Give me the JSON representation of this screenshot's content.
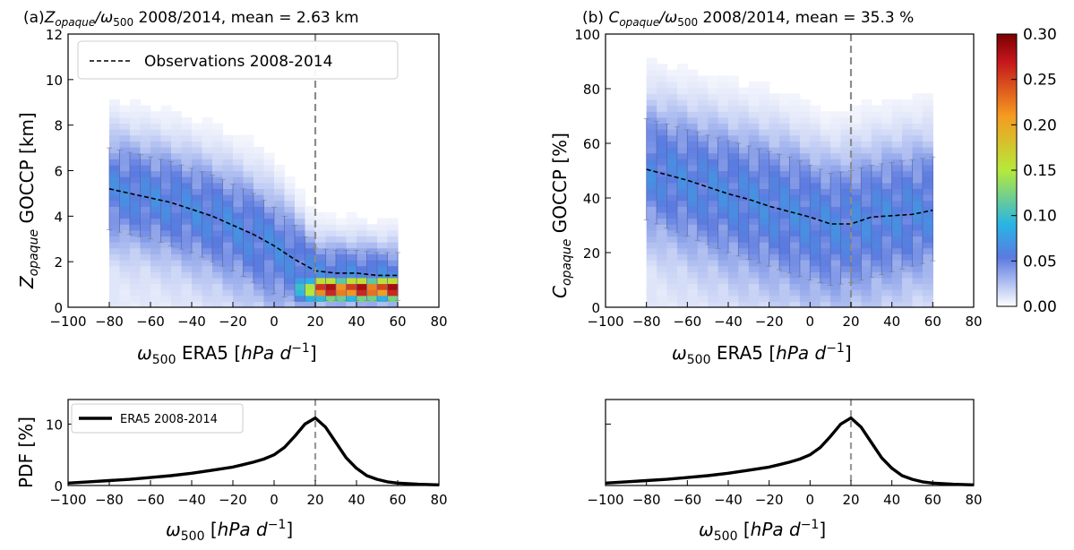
{
  "colorbar": {
    "ticks": [
      "0.30",
      "0.25",
      "0.20",
      "0.15",
      "0.10",
      "0.05",
      "0.00"
    ],
    "stops": [
      "#ffffff",
      "#5b7ae0",
      "#28b4e6",
      "#b6e93a",
      "#f59a20",
      "#c4161c",
      "#7a0000"
    ]
  },
  "chart_data": [
    {
      "panel": "a",
      "type": "heatmap",
      "title": {
        "prefix": "(a)",
        "var": "Z",
        "var_sub": "opaque",
        "sep": "/ω",
        "sep_sub": "500",
        "suffix": " 2008/2014, mean = 2.63 km"
      },
      "xlabel": {
        "main": "ω",
        "sub": "500",
        "rest": " ERA5 [",
        "italic": "hPa d",
        "sup": "−1",
        "close": "]"
      },
      "ylabel": {
        "var": "Z",
        "sub": "opaque",
        "rest": " GOCCP [km]"
      },
      "xlim": [
        -100,
        80
      ],
      "ylim": [
        0,
        12
      ],
      "xticks": [
        "−100",
        "−80",
        "−60",
        "−40",
        "−20",
        "0",
        "20",
        "40",
        "60",
        "80"
      ],
      "yticks": [
        "0",
        "2",
        "4",
        "6",
        "8",
        "10",
        "12"
      ],
      "legend": {
        "label": "Observations 2008-2014",
        "placement": "top-left"
      },
      "vline_x": 20,
      "x": [
        -80,
        -70,
        -60,
        -50,
        -40,
        -30,
        -20,
        -10,
        0,
        10,
        20,
        30,
        40,
        50,
        60
      ],
      "mean": [
        5.2,
        5.0,
        4.8,
        4.6,
        4.3,
        4.0,
        3.6,
        3.2,
        2.7,
        2.1,
        1.6,
        1.5,
        1.5,
        1.4,
        1.4
      ],
      "p_low": [
        3.4,
        3.2,
        3.0,
        2.7,
        2.4,
        2.0,
        1.6,
        1.1,
        0.6,
        0.3,
        0.3,
        0.3,
        0.3,
        0.3,
        0.3
      ],
      "p_high": [
        7.0,
        6.8,
        6.6,
        6.4,
        6.1,
        5.8,
        5.4,
        5.0,
        4.4,
        3.6,
        2.6,
        2.5,
        2.5,
        2.4,
        2.4
      ]
    },
    {
      "panel": "b",
      "type": "heatmap",
      "title": {
        "prefix": "(b) ",
        "var": "C",
        "var_sub": "opaque",
        "sep": "/ω",
        "sep_sub": "500",
        "suffix": " 2008/2014, mean = 35.3 %"
      },
      "xlabel": {
        "main": "ω",
        "sub": "500",
        "rest": " ERA5 [",
        "italic": "hPa d",
        "sup": "−1",
        "close": "]"
      },
      "ylabel": {
        "var": "C",
        "sub": "opaque",
        "rest": " GOCCP [%]"
      },
      "xlim": [
        -100,
        80
      ],
      "ylim": [
        0,
        100
      ],
      "xticks": [
        "−100",
        "−80",
        "−60",
        "−40",
        "−20",
        "0",
        "20",
        "40",
        "60",
        "80"
      ],
      "yticks": [
        "0",
        "20",
        "40",
        "60",
        "80",
        "100"
      ],
      "vline_x": 20,
      "x": [
        -80,
        -70,
        -60,
        -50,
        -40,
        -30,
        -20,
        -10,
        0,
        10,
        20,
        30,
        40,
        50,
        60
      ],
      "mean": [
        50.5,
        48.5,
        46.5,
        44.0,
        41.5,
        39.5,
        37.0,
        35.0,
        33.0,
        30.5,
        30.5,
        33.0,
        33.5,
        34.0,
        35.5
      ],
      "p_low": [
        32,
        29,
        26,
        23,
        20,
        17.5,
        15,
        12.5,
        10,
        8,
        9,
        11,
        13,
        15,
        17
      ],
      "p_high": [
        69,
        67,
        65,
        63,
        61,
        59,
        57,
        55,
        52,
        49,
        50,
        52,
        53,
        54,
        55
      ]
    },
    {
      "panel": "c",
      "type": "line",
      "ylabel": "PDF [%]",
      "xlabel": {
        "main": "ω",
        "sub": "500",
        "rest": " [",
        "italic": "hPa d",
        "sup": "−1",
        "close": "]"
      },
      "xlim": [
        -100,
        80
      ],
      "ylim": [
        0,
        14
      ],
      "xticks": [
        "−100",
        "−80",
        "−60",
        "−40",
        "−20",
        "0",
        "20",
        "40",
        "60",
        "80"
      ],
      "yticks": [
        "0",
        "10"
      ],
      "legend": {
        "label": "ERA5 2008-2014",
        "placement": "top-left"
      },
      "vline_x": 20,
      "series": [
        {
          "name": "ERA5 2008-2014",
          "x": [
            -100,
            -90,
            -80,
            -70,
            -60,
            -50,
            -40,
            -30,
            -20,
            -15,
            -10,
            -5,
            0,
            5,
            10,
            15,
            20,
            25,
            30,
            35,
            40,
            45,
            50,
            55,
            60,
            70,
            80
          ],
          "y": [
            0.4,
            0.6,
            0.8,
            1.0,
            1.3,
            1.6,
            2.0,
            2.5,
            3.0,
            3.4,
            3.8,
            4.3,
            5.0,
            6.2,
            8.0,
            10.0,
            11.0,
            9.5,
            7.0,
            4.5,
            2.8,
            1.6,
            1.0,
            0.6,
            0.4,
            0.2,
            0.1
          ]
        }
      ]
    },
    {
      "panel": "d",
      "type": "line",
      "xlabel": {
        "main": "ω",
        "sub": "500",
        "rest": " [",
        "italic": "hPa d",
        "sup": "−1",
        "close": "]"
      },
      "xlim": [
        -100,
        80
      ],
      "ylim": [
        0,
        14
      ],
      "xticks": [
        "−100",
        "−80",
        "−60",
        "−40",
        "−20",
        "0",
        "20",
        "40",
        "60",
        "80"
      ],
      "vline_x": 20,
      "series": [
        {
          "x": [
            -100,
            -90,
            -80,
            -70,
            -60,
            -50,
            -40,
            -30,
            -20,
            -15,
            -10,
            -5,
            0,
            5,
            10,
            15,
            20,
            25,
            30,
            35,
            40,
            45,
            50,
            55,
            60,
            70,
            80
          ],
          "y": [
            0.4,
            0.6,
            0.8,
            1.0,
            1.3,
            1.6,
            2.0,
            2.5,
            3.0,
            3.4,
            3.8,
            4.3,
            5.0,
            6.2,
            8.0,
            10.0,
            11.0,
            9.5,
            7.0,
            4.5,
            2.8,
            1.6,
            1.0,
            0.6,
            0.4,
            0.2,
            0.1
          ]
        }
      ]
    }
  ]
}
